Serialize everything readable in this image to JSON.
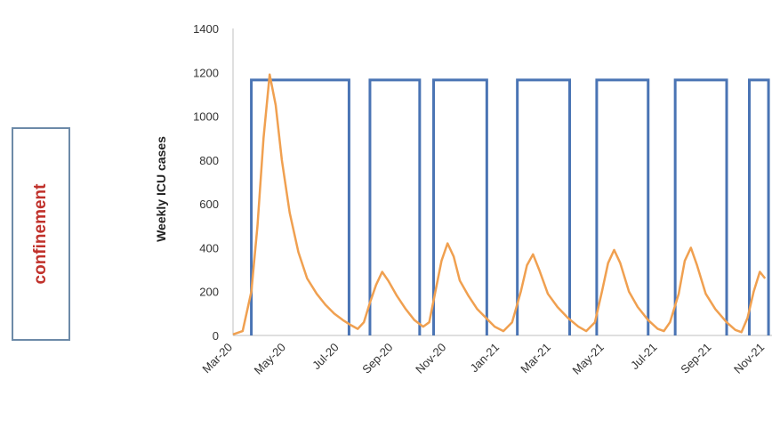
{
  "legend": {
    "label": "confinement"
  },
  "colors": {
    "confinement": "#4a74b4",
    "icu_cases": "#f0a050",
    "axis": "#bfbfbf"
  },
  "chart_data": {
    "type": "line",
    "xlabel": "",
    "ylabel": "Weekly ICU cases",
    "ylim": [
      0,
      1400
    ],
    "yticks": [
      0,
      200,
      400,
      600,
      800,
      1000,
      1200,
      1400
    ],
    "x_tick_labels": [
      "Mar-20",
      "May-20",
      "Jul-20",
      "Sep-20",
      "Nov-20",
      "Jan-21",
      "Mar-21",
      "May-21",
      "Jul-21",
      "Sep-21",
      "Nov-21"
    ],
    "grid": false,
    "series": [
      {
        "name": "Weekly ICU cases",
        "points": [
          [
            "2020-03-01",
            5
          ],
          [
            "2020-03-12",
            20
          ],
          [
            "2020-03-22",
            200
          ],
          [
            "2020-03-29",
            500
          ],
          [
            "2020-04-05",
            900
          ],
          [
            "2020-04-12",
            1190
          ],
          [
            "2020-04-19",
            1050
          ],
          [
            "2020-04-26",
            800
          ],
          [
            "2020-05-05",
            560
          ],
          [
            "2020-05-15",
            380
          ],
          [
            "2020-05-25",
            260
          ],
          [
            "2020-06-05",
            190
          ],
          [
            "2020-06-15",
            140
          ],
          [
            "2020-06-25",
            100
          ],
          [
            "2020-07-05",
            70
          ],
          [
            "2020-07-15",
            45
          ],
          [
            "2020-07-22",
            30
          ],
          [
            "2020-07-29",
            60
          ],
          [
            "2020-08-05",
            150
          ],
          [
            "2020-08-12",
            230
          ],
          [
            "2020-08-19",
            290
          ],
          [
            "2020-08-26",
            250
          ],
          [
            "2020-09-05",
            180
          ],
          [
            "2020-09-15",
            120
          ],
          [
            "2020-09-25",
            70
          ],
          [
            "2020-10-05",
            40
          ],
          [
            "2020-10-12",
            60
          ],
          [
            "2020-10-19",
            200
          ],
          [
            "2020-10-26",
            340
          ],
          [
            "2020-11-02",
            420
          ],
          [
            "2020-11-09",
            360
          ],
          [
            "2020-11-16",
            250
          ],
          [
            "2020-11-26",
            180
          ],
          [
            "2020-12-06",
            120
          ],
          [
            "2020-12-16",
            80
          ],
          [
            "2020-12-26",
            40
          ],
          [
            "2021-01-05",
            20
          ],
          [
            "2021-01-15",
            60
          ],
          [
            "2021-01-25",
            200
          ],
          [
            "2021-02-01",
            320
          ],
          [
            "2021-02-08",
            370
          ],
          [
            "2021-02-15",
            300
          ],
          [
            "2021-02-25",
            190
          ],
          [
            "2021-03-08",
            130
          ],
          [
            "2021-03-20",
            80
          ],
          [
            "2021-04-01",
            40
          ],
          [
            "2021-04-10",
            20
          ],
          [
            "2021-04-20",
            60
          ],
          [
            "2021-04-28",
            200
          ],
          [
            "2021-05-05",
            330
          ],
          [
            "2021-05-12",
            390
          ],
          [
            "2021-05-19",
            330
          ],
          [
            "2021-05-29",
            200
          ],
          [
            "2021-06-08",
            130
          ],
          [
            "2021-06-20",
            70
          ],
          [
            "2021-07-01",
            30
          ],
          [
            "2021-07-08",
            20
          ],
          [
            "2021-07-15",
            60
          ],
          [
            "2021-07-25",
            190
          ],
          [
            "2021-08-01",
            340
          ],
          [
            "2021-08-08",
            400
          ],
          [
            "2021-08-15",
            320
          ],
          [
            "2021-08-25",
            190
          ],
          [
            "2021-09-05",
            120
          ],
          [
            "2021-09-18",
            60
          ],
          [
            "2021-09-28",
            25
          ],
          [
            "2021-10-05",
            15
          ],
          [
            "2021-10-12",
            80
          ],
          [
            "2021-10-19",
            200
          ],
          [
            "2021-10-26",
            290
          ],
          [
            "2021-11-01",
            260
          ]
        ]
      }
    ],
    "confinement_periods": [
      {
        "start": "2020-03-22",
        "end": "2020-07-12"
      },
      {
        "start": "2020-08-05",
        "end": "2020-10-01"
      },
      {
        "start": "2020-10-17",
        "end": "2020-12-17"
      },
      {
        "start": "2021-01-21",
        "end": "2021-03-22"
      },
      {
        "start": "2021-04-22",
        "end": "2021-06-20"
      },
      {
        "start": "2021-07-21",
        "end": "2021-09-18"
      },
      {
        "start": "2021-10-14",
        "end": "2021-11-05"
      }
    ],
    "confinement_level": 1165
  }
}
